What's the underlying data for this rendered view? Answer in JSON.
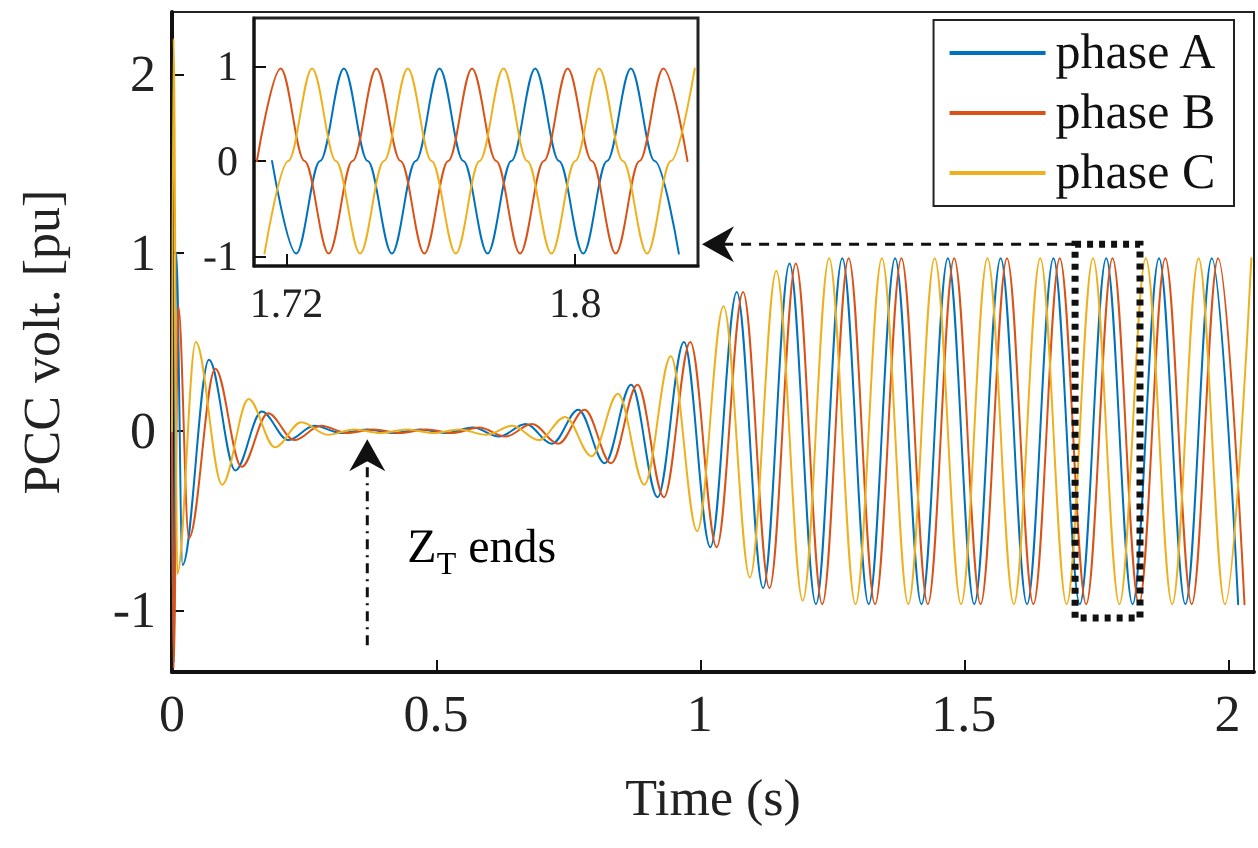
{
  "chart_data": [
    {
      "type": "line",
      "xlabel": "Time (s)",
      "ylabel": "PCC volt. [pu]",
      "xlim": [
        0,
        2.05
      ],
      "ylim": [
        -1.35,
        2.35
      ],
      "xticks": [
        0,
        0.5,
        1,
        1.5,
        2
      ],
      "yticks": [
        -1,
        0,
        1,
        2
      ],
      "grid": false,
      "legend": "top right",
      "marker": "none",
      "line_style": "solid",
      "annotations": [
        {
          "text": "Z$_{T}$ ends",
          "x": 0.37,
          "y": 0
        }
      ],
      "series": [
        {
          "name": "phase A",
          "color": "#0072bd",
          "x": [
            0,
            0.003,
            0.008,
            0.02,
            0.07,
            0.12,
            0.17,
            0.22,
            0.27,
            0.32,
            0.37,
            0.42,
            0.47,
            0.52,
            0.57,
            0.62,
            0.67,
            0.72,
            0.77,
            0.82,
            0.87,
            0.92,
            0.97,
            1.02,
            1.07,
            1.12,
            1.17,
            1.22,
            1.27,
            1.32,
            1.37,
            1.42,
            1.47,
            1.52,
            1.57,
            1.62,
            1.67,
            1.72,
            1.77,
            1.82,
            1.87,
            1.92,
            1.97,
            2.02
          ],
          "values": [
            0,
            -1.3,
            1.0,
            -0.75,
            0.4,
            -0.22,
            0.11,
            -0.05,
            0.03,
            -0.01,
            0.01,
            -0.01,
            0.01,
            -0.01,
            0.02,
            -0.03,
            0.04,
            -0.07,
            0.12,
            -0.18,
            0.26,
            -0.37,
            0.5,
            -0.65,
            0.78,
            -0.88,
            0.94,
            -0.97,
            0.97,
            -0.97,
            0.97,
            -0.97,
            0.97,
            -0.97,
            0.97,
            -0.97,
            0.97,
            -0.97,
            0.97,
            -0.97,
            0.97,
            -0.97,
            0.97,
            -0.97
          ]
        },
        {
          "name": "phase B",
          "color": "#d95319",
          "x": [
            0,
            0.003,
            0.012,
            0.032,
            0.082,
            0.132,
            0.182,
            0.232,
            0.282,
            0.332,
            0.382,
            0.432,
            0.482,
            0.532,
            0.582,
            0.632,
            0.682,
            0.732,
            0.782,
            0.832,
            0.882,
            0.932,
            0.982,
            1.032,
            1.082,
            1.132,
            1.182,
            1.232,
            1.282,
            1.332,
            1.382,
            1.432,
            1.482,
            1.532,
            1.582,
            1.632,
            1.682,
            1.732,
            1.782,
            1.832,
            1.882,
            1.932,
            1.982,
            2.032
          ],
          "values": [
            0,
            -1.33,
            0.7,
            -0.6,
            0.35,
            -0.2,
            0.1,
            -0.05,
            0.03,
            -0.01,
            0.01,
            -0.01,
            0.01,
            -0.01,
            0.02,
            -0.03,
            0.04,
            -0.07,
            0.12,
            -0.18,
            0.26,
            -0.37,
            0.5,
            -0.65,
            0.78,
            -0.88,
            0.94,
            -0.97,
            0.97,
            -0.97,
            0.97,
            -0.97,
            0.97,
            -0.97,
            0.97,
            -0.97,
            0.97,
            -0.97,
            0.97,
            -0.97,
            0.97,
            -0.97,
            0.97,
            -0.97
          ]
        },
        {
          "name": "phase C",
          "color": "#edb120",
          "x": [
            0,
            0.003,
            0.01,
            0.045,
            0.095,
            0.145,
            0.195,
            0.245,
            0.295,
            0.345,
            0.395,
            0.445,
            0.495,
            0.545,
            0.595,
            0.645,
            0.695,
            0.745,
            0.795,
            0.845,
            0.895,
            0.945,
            0.995,
            1.045,
            1.095,
            1.145,
            1.195,
            1.245,
            1.295,
            1.345,
            1.395,
            1.445,
            1.495,
            1.545,
            1.595,
            1.645,
            1.695,
            1.745,
            1.795,
            1.845,
            1.895,
            1.945,
            1.995,
            2.045
          ],
          "values": [
            0,
            2.2,
            -0.8,
            0.5,
            -0.3,
            0.18,
            -0.09,
            0.05,
            -0.02,
            0.01,
            -0.01,
            0.01,
            -0.01,
            0.01,
            -0.02,
            0.03,
            -0.05,
            0.08,
            -0.14,
            0.21,
            -0.3,
            0.42,
            -0.56,
            0.7,
            -0.82,
            0.9,
            -0.95,
            0.97,
            -0.97,
            0.97,
            -0.97,
            0.97,
            -0.97,
            0.97,
            -0.97,
            0.97,
            -0.97,
            0.97,
            -0.97,
            0.97,
            -0.97,
            0.97,
            -0.97,
            0.97
          ]
        }
      ]
    },
    {
      "type": "line",
      "xlim": [
        1.711,
        1.834
      ],
      "ylim": [
        -1.1,
        1.5
      ],
      "xticks": [
        1.72,
        1.8
      ],
      "yticks": [
        -1,
        0,
        1
      ],
      "grid": false,
      "legend": false,
      "marker": "none",
      "line_style": "solid",
      "series": [
        {
          "color": "#0072bd",
          "x": [
            1.716,
            1.7227,
            1.7293,
            1.7359,
            1.7425,
            1.7492,
            1.7558,
            1.7624,
            1.769,
            1.7757,
            1.7823,
            1.7889,
            1.7955,
            1.8022,
            1.8088,
            1.8154,
            1.822,
            1.8287
          ],
          "values": [
            0,
            -0.97,
            0,
            0.97,
            0,
            -0.97,
            0,
            0.97,
            0,
            -0.97,
            0,
            0.97,
            0,
            -0.97,
            0,
            0.97,
            0,
            -0.97
          ]
        },
        {
          "color": "#d95319",
          "x": [
            1.7118,
            1.7184,
            1.725,
            1.7317,
            1.7383,
            1.7449,
            1.7516,
            1.7582,
            1.7648,
            1.7714,
            1.7781,
            1.7847,
            1.7913,
            1.7979,
            1.8046,
            1.8112,
            1.8178,
            1.8244,
            1.8311
          ],
          "values": [
            0,
            0.97,
            0,
            -0.97,
            0,
            0.97,
            0,
            -0.97,
            0,
            0.97,
            0,
            -0.97,
            0,
            0.97,
            0,
            -0.97,
            0,
            0.97,
            0
          ]
        },
        {
          "color": "#edb120",
          "x": [
            1.7139,
            1.7205,
            1.7271,
            1.7337,
            1.7404,
            1.747,
            1.7536,
            1.7602,
            1.7669,
            1.7735,
            1.7801,
            1.7867,
            1.7934,
            1.8,
            1.8066,
            1.8132,
            1.8199,
            1.8265,
            1.8331
          ],
          "values": [
            -0.97,
            0,
            0.97,
            0,
            -0.97,
            0,
            0.97,
            0,
            -0.97,
            0,
            0.97,
            0,
            -0.97,
            0,
            0.97,
            0,
            -0.97,
            0,
            0.97
          ]
        }
      ]
    }
  ]
}
